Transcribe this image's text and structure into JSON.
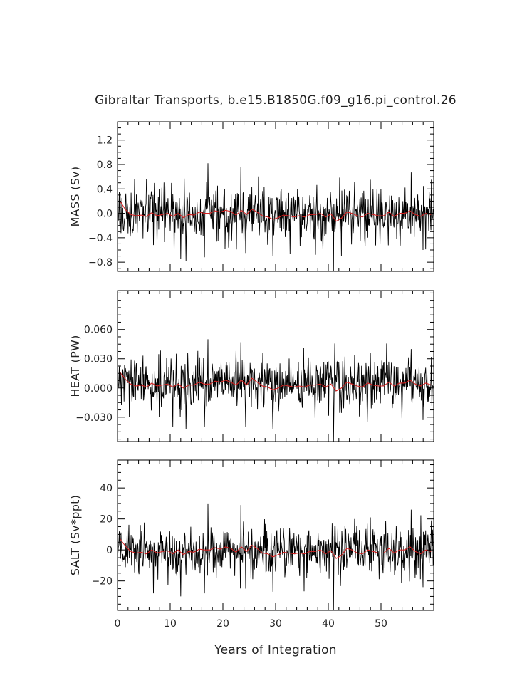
{
  "figure": {
    "title": "Gibraltar Transports, b.e15.B1850G.f09_g16.pi_control.26",
    "xlabel": "Years of Integration"
  },
  "chart_data": [
    {
      "type": "line",
      "ylabel": "MASS (Sv)",
      "xlim": [
        0,
        60
      ],
      "ylim": [
        -0.95,
        1.5
      ],
      "x_ticks": [
        0,
        10,
        20,
        30,
        40,
        50
      ],
      "y_ticks": [
        -0.8,
        -0.4,
        0.0,
        0.4,
        0.8,
        1.2
      ],
      "y_tick_labels": [
        "−0.8",
        "−0.4",
        "0.0",
        "0.4",
        "0.8",
        "1.2"
      ],
      "grid": false,
      "series": [
        {
          "role": "monthly",
          "color": "#000000",
          "n_points": 720,
          "dx": 0.0833,
          "mean": -0.02,
          "std": 0.22,
          "seed": 17,
          "peaks": [
            [
              0.3,
              0.35
            ],
            [
              12.0,
              -0.75
            ],
            [
              13.0,
              -0.78
            ],
            [
              16.5,
              -0.72
            ],
            [
              17.2,
              0.82
            ],
            [
              23.4,
              0.76
            ],
            [
              24.3,
              -0.65
            ],
            [
              29.5,
              -0.7
            ],
            [
              41.0,
              -0.95
            ],
            [
              45.0,
              0.52
            ],
            [
              48.0,
              0.55
            ],
            [
              55.7,
              0.67
            ],
            [
              58.0,
              -0.6
            ],
            [
              59.6,
              0.55
            ]
          ]
        },
        {
          "role": "annual-mean",
          "color": "#d42020",
          "x": [
            0.5,
            1.5,
            2.5,
            3.5,
            4.5,
            5.5,
            6.5,
            7.5,
            8.5,
            9.5,
            10.5,
            11.5,
            12.5,
            13.5,
            14.5,
            15.5,
            16.5,
            17.5,
            18.5,
            19.5,
            20.5,
            21.5,
            22.5,
            23.5,
            24.5,
            25.5,
            26.5,
            27.5,
            28.5,
            29.5,
            30.5,
            31.5,
            32.5,
            33.5,
            34.5,
            35.5,
            36.5,
            37.5,
            38.5,
            39.5,
            40.5,
            41.5,
            42.5,
            43.5,
            44.5,
            45.5,
            46.5,
            47.5,
            48.5,
            49.5,
            50.5,
            51.5,
            52.5,
            53.5,
            54.5,
            55.5,
            56.5,
            57.5,
            58.5,
            59.5
          ],
          "values": [
            0.2,
            0.06,
            -0.02,
            -0.04,
            -0.03,
            -0.05,
            0.01,
            -0.04,
            -0.02,
            0.0,
            -0.05,
            0.0,
            -0.07,
            -0.02,
            -0.03,
            0.02,
            0.0,
            0.0,
            0.04,
            0.02,
            0.05,
            0.03,
            -0.03,
            0.05,
            -0.02,
            0.07,
            0.02,
            -0.04,
            -0.06,
            -0.1,
            -0.07,
            -0.03,
            -0.04,
            -0.06,
            -0.04,
            -0.06,
            -0.02,
            -0.02,
            0.0,
            -0.06,
            -0.01,
            -0.13,
            -0.08,
            0.02,
            0.0,
            -0.04,
            -0.06,
            0.0,
            -0.02,
            -0.04,
            -0.04,
            0.02,
            -0.05,
            0.0,
            0.0,
            0.04,
            -0.02,
            -0.05,
            0.0,
            -0.02
          ]
        }
      ]
    },
    {
      "type": "line",
      "ylabel": "HEAT (PW)",
      "xlim": [
        0,
        60
      ],
      "ylim": [
        -0.055,
        0.1
      ],
      "x_ticks": [
        0,
        10,
        20,
        30,
        40,
        50
      ],
      "y_ticks": [
        -0.03,
        0.0,
        0.03,
        0.06
      ],
      "y_tick_labels": [
        "−0.030",
        "0.000",
        "0.030",
        "0.060"
      ],
      "grid": false,
      "series": [
        {
          "role": "monthly",
          "color": "#000000",
          "n_points": 720,
          "dx": 0.0833,
          "mean": 0.004,
          "std": 0.013,
          "seed": 29,
          "peaks": [
            [
              0.3,
              0.022
            ],
            [
              10.5,
              -0.04
            ],
            [
              13.0,
              -0.042
            ],
            [
              16.5,
              -0.04
            ],
            [
              17.2,
              0.05
            ],
            [
              23.4,
              0.047
            ],
            [
              24.3,
              -0.04
            ],
            [
              29.5,
              -0.042
            ],
            [
              41.0,
              -0.055
            ],
            [
              45.0,
              0.034
            ],
            [
              48.0,
              0.036
            ],
            [
              55.7,
              0.04
            ],
            [
              58.0,
              -0.033
            ],
            [
              59.6,
              0.032
            ]
          ]
        },
        {
          "role": "annual-mean",
          "color": "#d42020",
          "x": [
            0.5,
            1.5,
            2.5,
            3.5,
            4.5,
            5.5,
            6.5,
            7.5,
            8.5,
            9.5,
            10.5,
            11.5,
            12.5,
            13.5,
            14.5,
            15.5,
            16.5,
            17.5,
            18.5,
            19.5,
            20.5,
            21.5,
            22.5,
            23.5,
            24.5,
            25.5,
            26.5,
            27.5,
            28.5,
            29.5,
            30.5,
            31.5,
            32.5,
            33.5,
            34.5,
            35.5,
            36.5,
            37.5,
            38.5,
            39.5,
            40.5,
            41.5,
            42.5,
            43.5,
            44.5,
            45.5,
            46.5,
            47.5,
            48.5,
            49.5,
            50.5,
            51.5,
            52.5,
            53.5,
            54.5,
            55.5,
            56.5,
            57.5,
            58.5,
            59.5
          ],
          "values": [
            0.016,
            0.009,
            0.004,
            0.002,
            0.003,
            0.001,
            0.005,
            0.002,
            0.003,
            0.004,
            0.001,
            0.004,
            0.0,
            0.003,
            0.003,
            0.006,
            0.004,
            0.004,
            0.007,
            0.006,
            0.008,
            0.006,
            0.003,
            0.008,
            0.003,
            0.01,
            0.006,
            0.002,
            0.001,
            -0.002,
            0.0,
            0.003,
            0.002,
            0.001,
            0.002,
            0.001,
            0.003,
            0.003,
            0.004,
            0.001,
            0.004,
            -0.003,
            0.0,
            0.006,
            0.004,
            0.002,
            0.001,
            0.005,
            0.003,
            0.002,
            0.002,
            0.006,
            0.002,
            0.005,
            0.005,
            0.008,
            0.004,
            0.002,
            0.005,
            0.003
          ]
        }
      ]
    },
    {
      "type": "line",
      "ylabel": "SALT (Sv*ppt)",
      "xlim": [
        0,
        60
      ],
      "ylim": [
        -39,
        58
      ],
      "x_ticks": [
        0,
        10,
        20,
        30,
        40,
        50
      ],
      "y_ticks": [
        -20,
        0,
        20,
        40
      ],
      "y_tick_labels": [
        "−20",
        "0",
        "20",
        "40"
      ],
      "grid": false,
      "series": [
        {
          "role": "monthly",
          "color": "#000000",
          "n_points": 720,
          "dx": 0.0833,
          "mean": -1.0,
          "std": 8.0,
          "seed": 43,
          "peaks": [
            [
              0.3,
              12
            ],
            [
              6.8,
              -28
            ],
            [
              12.0,
              -30
            ],
            [
              16.5,
              -28
            ],
            [
              17.2,
              30
            ],
            [
              23.4,
              29
            ],
            [
              24.3,
              -25
            ],
            [
              29.5,
              -27
            ],
            [
              41.0,
              -39
            ],
            [
              45.0,
              20
            ],
            [
              48.0,
              21
            ],
            [
              55.7,
              26
            ],
            [
              58.0,
              -24
            ],
            [
              59.6,
              19
            ]
          ]
        },
        {
          "role": "annual-mean",
          "color": "#d42020",
          "x": [
            0.5,
            1.5,
            2.5,
            3.5,
            4.5,
            5.5,
            6.5,
            7.5,
            8.5,
            9.5,
            10.5,
            11.5,
            12.5,
            13.5,
            14.5,
            15.5,
            16.5,
            17.5,
            18.5,
            19.5,
            20.5,
            21.5,
            22.5,
            23.5,
            24.5,
            25.5,
            26.5,
            27.5,
            28.5,
            29.5,
            30.5,
            31.5,
            32.5,
            33.5,
            34.5,
            35.5,
            36.5,
            37.5,
            38.5,
            39.5,
            40.5,
            41.5,
            42.5,
            43.5,
            44.5,
            45.5,
            46.5,
            47.5,
            48.5,
            49.5,
            50.5,
            51.5,
            52.5,
            53.5,
            54.5,
            55.5,
            56.5,
            57.5,
            58.5,
            59.5
          ],
          "values": [
            7.0,
            2.5,
            -1.0,
            -2.0,
            -1.5,
            -2.5,
            0.0,
            -2.0,
            -1.0,
            -0.5,
            -2.5,
            0.0,
            -3.0,
            -1.0,
            -1.5,
            0.5,
            0.0,
            0.0,
            1.5,
            0.5,
            2.0,
            1.0,
            -1.5,
            2.0,
            -1.0,
            3.0,
            1.0,
            -2.0,
            -2.5,
            -4.5,
            -3.0,
            -1.5,
            -2.0,
            -2.5,
            -2.0,
            -2.5,
            -1.0,
            -1.0,
            0.0,
            -2.5,
            -0.5,
            -5.5,
            -3.5,
            1.0,
            0.0,
            -2.0,
            -2.5,
            0.0,
            -1.0,
            -2.0,
            -2.0,
            1.0,
            -2.0,
            0.0,
            0.0,
            2.0,
            -1.0,
            -2.5,
            0.0,
            -1.0
          ]
        }
      ]
    }
  ]
}
